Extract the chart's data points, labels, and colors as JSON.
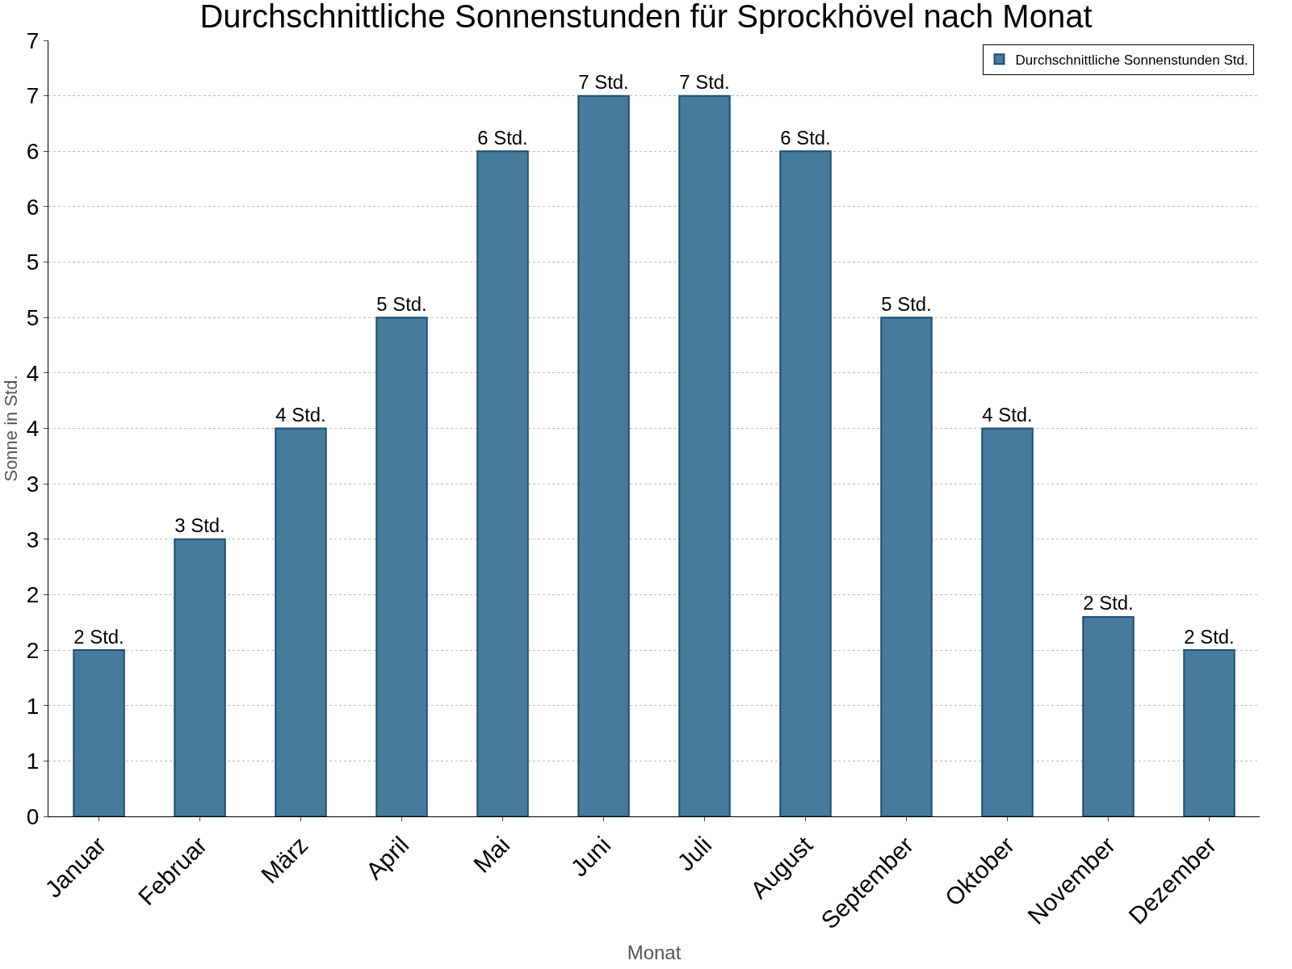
{
  "chart_data": {
    "type": "bar",
    "title": "Durchschnittliche Sonnenstunden für Sprockhövel nach Monat",
    "xlabel": "Monat",
    "ylabel": "Sonne in Std.",
    "categories": [
      "Januar",
      "Februar",
      "März",
      "April",
      "Mai",
      "Juni",
      "Juli",
      "August",
      "September",
      "Oktober",
      "November",
      "Dezember"
    ],
    "series": [
      {
        "name": "Durchschnittliche Sonnenstunden Std.",
        "color": "#467b9d",
        "values": [
          1.5,
          2.5,
          3.5,
          4.5,
          6.0,
          6.5,
          6.5,
          6.0,
          4.5,
          3.5,
          1.8,
          1.5
        ],
        "value_labels": [
          "2 Std.",
          "3 Std.",
          "4 Std.",
          "5 Std.",
          "6 Std.",
          "7 Std.",
          "7 Std.",
          "6 Std.",
          "5 Std.",
          "4 Std.",
          "2 Std.",
          "2 Std."
        ]
      }
    ],
    "ylim": [
      0,
      7
    ],
    "yticks": [
      0,
      {
        "value": 0.5,
        "label": "1"
      },
      1,
      {
        "value": 1.5,
        "label": "2"
      },
      2,
      {
        "value": 2.5,
        "label": "3"
      },
      3,
      {
        "value": 3.5,
        "label": "4"
      },
      4,
      {
        "value": 4.5,
        "label": "5"
      },
      5,
      {
        "value": 5.5,
        "label": "6"
      },
      6,
      {
        "value": 6.5,
        "label": "7"
      },
      7
    ],
    "grid": "y",
    "legend": "top right"
  }
}
